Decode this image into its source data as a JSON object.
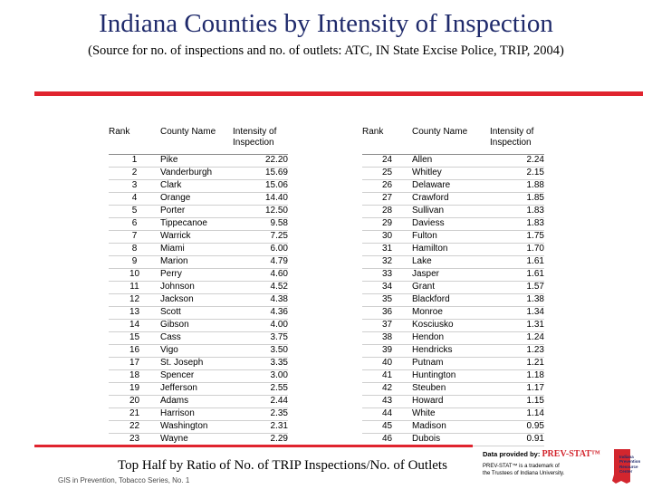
{
  "slide": {
    "title": "Indiana Counties by Intensity of Inspection",
    "subtitle": "(Source for no. of inspections and no. of outlets:  ATC, IN State Excise Police, TRIP, 2004)",
    "caption": "Top Half by Ratio of No. of TRIP Inspections/No. of Outlets",
    "footer": "GIS in Prevention, Tobacco Series, No. 1"
  },
  "credit": {
    "prefix": "Data provided by: ",
    "brand": "PREV-STAT™",
    "trademark_line1": "PREV-STAT™ is a trademark of",
    "trademark_line2": "the Trustees of Indiana University.",
    "logo_text": "Indiana Prevention Resource Center"
  },
  "colors": {
    "title": "#1f2a6b",
    "rule": "#e0242e",
    "brand": "#d3262e"
  },
  "table": {
    "headers": {
      "rank": "Rank",
      "county": "County Name",
      "intensity": "Intensity of Inspection"
    },
    "left": [
      {
        "rank": "1",
        "county": "Pike",
        "intensity": "22.20"
      },
      {
        "rank": "2",
        "county": "Vanderburgh",
        "intensity": "15.69"
      },
      {
        "rank": "3",
        "county": "Clark",
        "intensity": "15.06"
      },
      {
        "rank": "4",
        "county": "Orange",
        "intensity": "14.40"
      },
      {
        "rank": "5",
        "county": "Porter",
        "intensity": "12.50"
      },
      {
        "rank": "6",
        "county": "Tippecanoe",
        "intensity": "9.58"
      },
      {
        "rank": "7",
        "county": "Warrick",
        "intensity": "7.25"
      },
      {
        "rank": "8",
        "county": "Miami",
        "intensity": "6.00"
      },
      {
        "rank": "9",
        "county": "Marion",
        "intensity": "4.79"
      },
      {
        "rank": "10",
        "county": "Perry",
        "intensity": "4.60"
      },
      {
        "rank": "11",
        "county": "Johnson",
        "intensity": "4.52"
      },
      {
        "rank": "12",
        "county": "Jackson",
        "intensity": "4.38"
      },
      {
        "rank": "13",
        "county": "Scott",
        "intensity": "4.36"
      },
      {
        "rank": "14",
        "county": "Gibson",
        "intensity": "4.00"
      },
      {
        "rank": "15",
        "county": "Cass",
        "intensity": "3.75"
      },
      {
        "rank": "16",
        "county": "Vigo",
        "intensity": "3.50"
      },
      {
        "rank": "17",
        "county": "St. Joseph",
        "intensity": "3.35"
      },
      {
        "rank": "18",
        "county": "Spencer",
        "intensity": "3.00"
      },
      {
        "rank": "19",
        "county": "Jefferson",
        "intensity": "2.55"
      },
      {
        "rank": "20",
        "county": "Adams",
        "intensity": "2.44"
      },
      {
        "rank": "21",
        "county": "Harrison",
        "intensity": "2.35"
      },
      {
        "rank": "22",
        "county": "Washington",
        "intensity": "2.31"
      },
      {
        "rank": "23",
        "county": "Wayne",
        "intensity": "2.29"
      }
    ],
    "right": [
      {
        "rank": "24",
        "county": "Allen",
        "intensity": "2.24"
      },
      {
        "rank": "25",
        "county": "Whitley",
        "intensity": "2.15"
      },
      {
        "rank": "26",
        "county": "Delaware",
        "intensity": "1.88"
      },
      {
        "rank": "27",
        "county": "Crawford",
        "intensity": "1.85"
      },
      {
        "rank": "28",
        "county": "Sullivan",
        "intensity": "1.83"
      },
      {
        "rank": "29",
        "county": "Daviess",
        "intensity": "1.83"
      },
      {
        "rank": "30",
        "county": "Fulton",
        "intensity": "1.75"
      },
      {
        "rank": "31",
        "county": "Hamilton",
        "intensity": "1.70"
      },
      {
        "rank": "32",
        "county": "Lake",
        "intensity": "1.61"
      },
      {
        "rank": "33",
        "county": "Jasper",
        "intensity": "1.61"
      },
      {
        "rank": "34",
        "county": "Grant",
        "intensity": "1.57"
      },
      {
        "rank": "35",
        "county": "Blackford",
        "intensity": "1.38"
      },
      {
        "rank": "36",
        "county": "Monroe",
        "intensity": "1.34"
      },
      {
        "rank": "37",
        "county": "Kosciusko",
        "intensity": "1.31"
      },
      {
        "rank": "38",
        "county": "Hendon",
        "intensity": "1.24"
      },
      {
        "rank": "39",
        "county": "Hendricks",
        "intensity": "1.23"
      },
      {
        "rank": "40",
        "county": "Putnam",
        "intensity": "1.21"
      },
      {
        "rank": "41",
        "county": "Huntington",
        "intensity": "1.18"
      },
      {
        "rank": "42",
        "county": "Steuben",
        "intensity": "1.17"
      },
      {
        "rank": "43",
        "county": "Howard",
        "intensity": "1.15"
      },
      {
        "rank": "44",
        "county": "White",
        "intensity": "1.14"
      },
      {
        "rank": "45",
        "county": "Madison",
        "intensity": "0.95"
      },
      {
        "rank": "46",
        "county": "Dubois",
        "intensity": "0.91"
      }
    ]
  }
}
